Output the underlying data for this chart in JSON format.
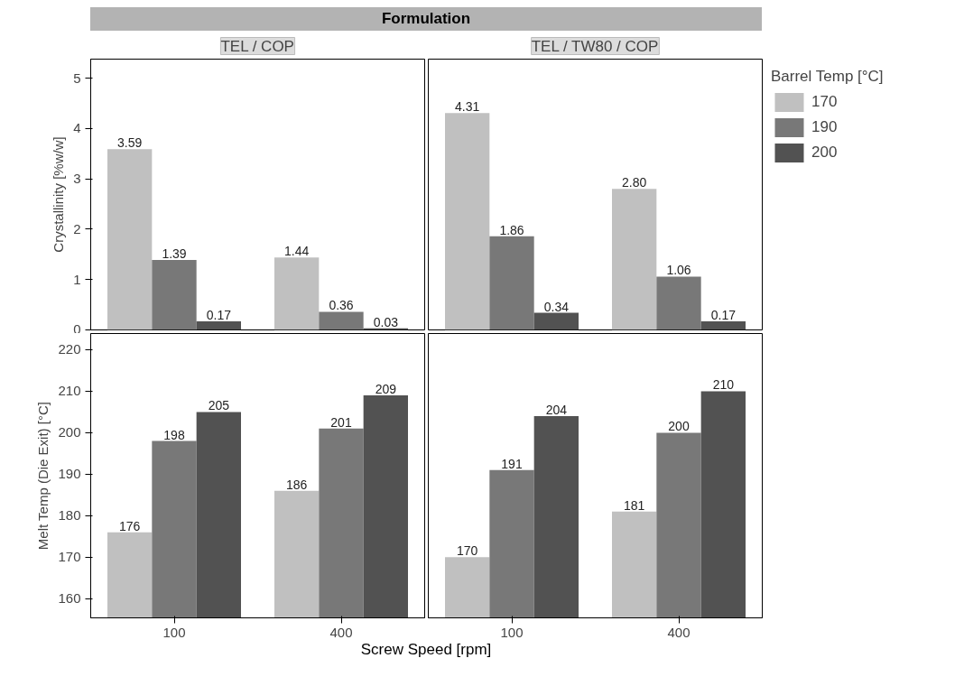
{
  "chart_data": [
    {
      "type": "bar",
      "title": "TEL / COP",
      "ylabel": "Crystallinity [%w/w]",
      "annotations": [
        "Formulation"
      ],
      "categories": [
        "100",
        "400"
      ],
      "ylim": [
        0,
        5.38
      ],
      "yticks": [
        0,
        1,
        2,
        3,
        4,
        5
      ],
      "tick_labels": "y",
      "grid": false,
      "series": [
        {
          "color": "#c0c0c0",
          "values": [
            3.59,
            1.44
          ],
          "value_labels": [
            "3.59",
            "1.44"
          ]
        },
        {
          "color": "#787878",
          "values": [
            1.39,
            0.36
          ],
          "value_labels": [
            "1.39",
            "0.36"
          ]
        },
        {
          "color": "#525252",
          "values": [
            0.17,
            0.03
          ],
          "value_labels": [
            "0.17",
            "0.03"
          ]
        }
      ]
    },
    {
      "type": "bar",
      "title": "TEL / TW80 / COP",
      "legend_title": "Barrel Temp [°C]",
      "legend": "right",
      "categories": [
        "100",
        "400"
      ],
      "ylim": [
        0,
        5.38
      ],
      "tick_labels": false,
      "grid": false,
      "series": [
        {
          "name": "170",
          "color": "#c0c0c0",
          "values": [
            4.31,
            2.8
          ],
          "value_labels": [
            "4.31",
            "2.80"
          ]
        },
        {
          "name": "190",
          "color": "#787878",
          "values": [
            1.86,
            1.06
          ],
          "value_labels": [
            "1.86",
            "1.06"
          ]
        },
        {
          "name": "200",
          "color": "#525252",
          "values": [
            0.34,
            0.17
          ],
          "value_labels": [
            "0.34",
            "0.17"
          ]
        }
      ]
    },
    {
      "type": "bar",
      "ylabel": "Melt Temp (Die Exit) [°C]",
      "xlabel": "Screw Speed [rpm]",
      "categories": [
        "100",
        "400"
      ],
      "ylim": [
        155.4,
        223.9
      ],
      "yticks": [
        160,
        170,
        180,
        190,
        200,
        210,
        220
      ],
      "data_labels": true,
      "grid": false,
      "series": [
        {
          "color": "#c0c0c0",
          "values": [
            176,
            186
          ]
        },
        {
          "color": "#787878",
          "values": [
            198,
            201
          ]
        },
        {
          "color": "#525252",
          "values": [
            205,
            209
          ]
        }
      ]
    },
    {
      "type": "bar",
      "categories": [
        "100",
        "400"
      ],
      "ylim": [
        155.4,
        223.9
      ],
      "tick_labels": "x",
      "data_labels": true,
      "grid": false,
      "series": [
        {
          "color": "#c0c0c0",
          "values": [
            170,
            181
          ]
        },
        {
          "color": "#787878",
          "values": [
            191,
            200
          ]
        },
        {
          "color": "#525252",
          "values": [
            204,
            210
          ]
        }
      ]
    }
  ]
}
